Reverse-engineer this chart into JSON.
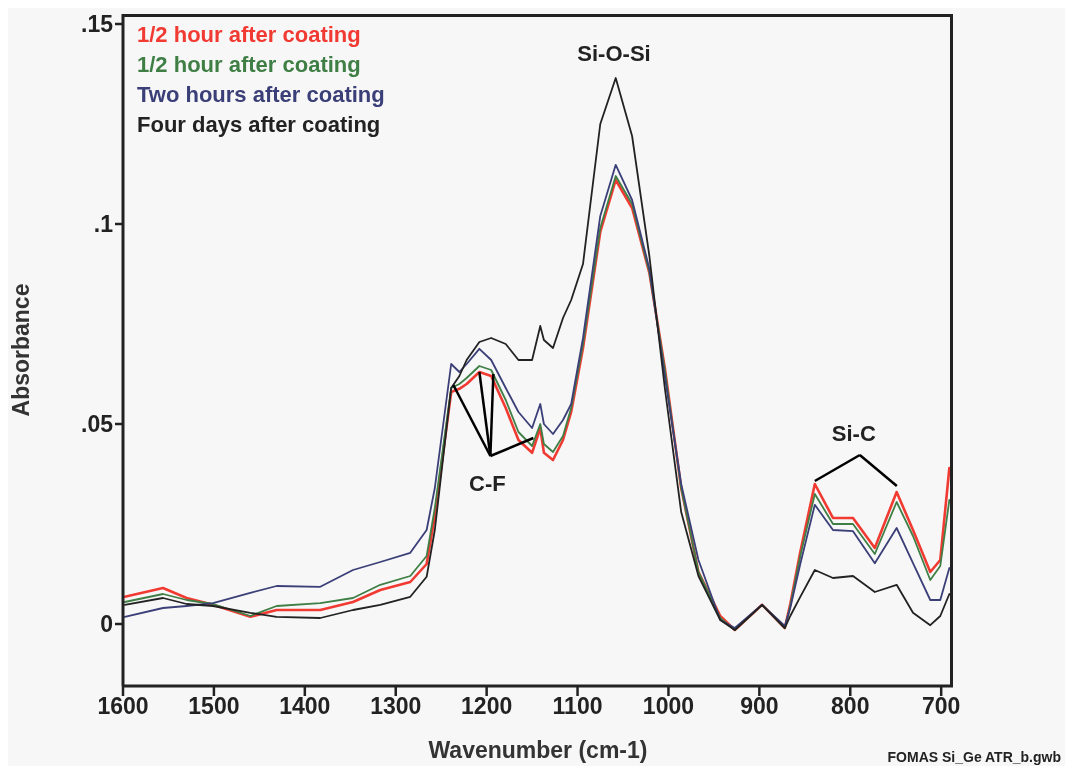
{
  "chart_data": {
    "type": "line",
    "xlabel": "Wavenumber (cm-1)",
    "ylabel": "Absorbance",
    "x": [
      1598,
      1556,
      1530,
      1501,
      1460,
      1431,
      1383,
      1347,
      1317,
      1284,
      1266,
      1257,
      1239,
      1230,
      1222,
      1208,
      1195,
      1179,
      1165,
      1150,
      1141,
      1137,
      1127,
      1116,
      1107,
      1094,
      1075,
      1058,
      1040,
      1021,
      1004,
      986,
      967,
      943,
      927,
      897,
      872,
      866,
      855,
      839,
      819,
      797,
      773,
      749,
      731,
      712,
      701,
      691
    ],
    "series": [
      {
        "name": "1/2 hour after coating",
        "color": "#f03a32",
        "values": [
          0.0068,
          0.009,
          0.0065,
          0.0048,
          0.0018,
          0.0035,
          0.0035,
          0.0055,
          0.0085,
          0.0105,
          0.015,
          0.027,
          0.058,
          0.0588,
          0.06,
          0.063,
          0.062,
          0.054,
          0.046,
          0.0428,
          0.049,
          0.0428,
          0.041,
          0.046,
          0.053,
          0.069,
          0.098,
          0.111,
          0.104,
          0.0878,
          0.064,
          0.034,
          0.013,
          0.002,
          -0.0015,
          0.0048,
          -0.001,
          0.005,
          0.018,
          0.035,
          0.0265,
          0.0265,
          0.019,
          0.033,
          0.0235,
          0.013,
          0.016,
          0.039
        ]
      },
      {
        "name": "1/2 hour after coating",
        "color": "#3f7f45",
        "values": [
          0.0055,
          0.0075,
          0.006,
          0.005,
          0.002,
          0.0045,
          0.0052,
          0.0065,
          0.0098,
          0.012,
          0.017,
          0.029,
          0.059,
          0.06,
          0.0615,
          0.0645,
          0.0635,
          0.056,
          0.048,
          0.0445,
          0.05,
          0.045,
          0.043,
          0.047,
          0.054,
          0.07,
          0.099,
          0.112,
          0.105,
          0.088,
          0.0635,
          0.034,
          0.013,
          0.0015,
          -0.0015,
          0.0048,
          -0.001,
          0.0045,
          0.017,
          0.0325,
          0.025,
          0.025,
          0.0175,
          0.0305,
          0.022,
          0.011,
          0.0145,
          0.031
        ]
      },
      {
        "name": "Two hours after coating",
        "color": "#3b3f78",
        "values": [
          0.0018,
          0.004,
          0.0045,
          0.0052,
          0.0078,
          0.0095,
          0.0093,
          0.0135,
          0.0155,
          0.0178,
          0.0235,
          0.034,
          0.065,
          0.063,
          0.065,
          0.0688,
          0.066,
          0.059,
          0.053,
          0.049,
          0.055,
          0.05,
          0.0475,
          0.051,
          0.055,
          0.0715,
          0.102,
          0.1148,
          0.106,
          0.0888,
          0.062,
          0.035,
          0.016,
          0.001,
          -0.001,
          0.0048,
          -0.0005,
          0.004,
          0.015,
          0.0298,
          0.0235,
          0.0232,
          0.0152,
          0.024,
          0.0152,
          0.006,
          0.006,
          0.014
        ]
      },
      {
        "name": "Four days after coating",
        "color": "#222222",
        "values": [
          0.0048,
          0.0065,
          0.005,
          0.0045,
          0.0028,
          0.0018,
          0.0015,
          0.0035,
          0.0048,
          0.0068,
          0.0118,
          0.0235,
          0.059,
          0.062,
          0.066,
          0.0705,
          0.0715,
          0.07,
          0.066,
          0.066,
          0.0745,
          0.071,
          0.069,
          0.0765,
          0.081,
          0.09,
          0.125,
          0.1365,
          0.122,
          0.092,
          0.059,
          0.028,
          0.012,
          0.001,
          -0.0015,
          0.0048,
          -0.001,
          0.002,
          0.0068,
          0.0135,
          0.0115,
          0.012,
          0.008,
          0.0098,
          0.0028,
          -0.0003,
          0.002,
          0.0075
        ]
      }
    ],
    "xlim": [
      1600,
      687
    ],
    "xticks": [
      1600,
      1500,
      1400,
      1300,
      1200,
      1100,
      1000,
      900,
      800,
      700
    ],
    "ylim": [
      -0.0155,
      0.1525
    ],
    "yticks": [
      {
        "value": 0,
        "label": "0"
      },
      {
        "value": 0.05,
        "label": ".05"
      },
      {
        "value": 0.1,
        "label": ".1"
      },
      {
        "value": 0.15,
        "label": ".15"
      }
    ],
    "annotations": [
      "Si-O-Si",
      {
        "text": "C-F",
        "x": 1208,
        "y": 0.063
      },
      {
        "text": "Si-C",
        "x": 839,
        "y": 0.035
      },
      "FOMAS Si_Ge ATR_b.gwb"
    ],
    "legend": "top left",
    "grid": false,
    "marker": "none",
    "line_style": "solid"
  }
}
